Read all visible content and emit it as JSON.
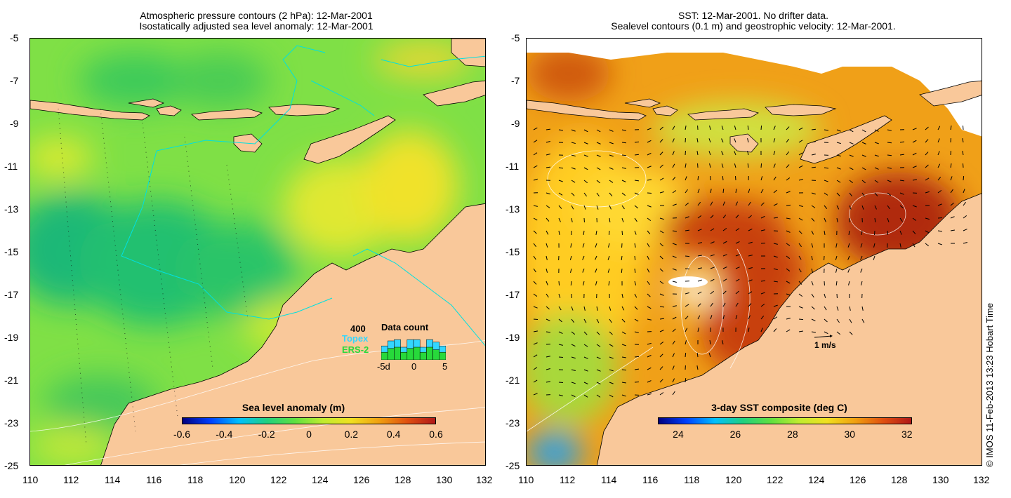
{
  "left_panel": {
    "title_line1": "Atmospheric pressure contours (2 hPa): 12-Mar-2001",
    "title_line2": "Isostatically adjusted sea level anomaly: 12-Mar-2001",
    "colorbar_title": "Sea level anomaly (m)",
    "colorbar_ticks": [
      "-0.6",
      "-0.4",
      "-0.2",
      "0",
      "0.2",
      "0.4",
      "0.6"
    ],
    "colors": {
      "ocean_base": "#7fe046",
      "ocean_low": "#22c070",
      "ocean_high": "#e8ec2a",
      "land": "#f9c89a"
    },
    "inset": {
      "title": "Data count",
      "max_label": "400",
      "series1_label": "Topex",
      "series2_label": "ERS-2",
      "series1_color": "#33d6ff",
      "series2_color": "#27d93b",
      "x_ticks": [
        "-5d",
        "0",
        "5"
      ],
      "series1_values": [
        0.55,
        0.75,
        0.8,
        0.5,
        0.8,
        0.8,
        0.5,
        0.8,
        0.7,
        0.55
      ],
      "series2_values": [
        0.3,
        0.45,
        0.5,
        0.3,
        0.45,
        0.5,
        0.3,
        0.5,
        0.4,
        0.3
      ]
    }
  },
  "right_panel": {
    "title_line1": "SST: 12-Mar-2001. No drifter data.",
    "title_line2": "Sealevel contours (0.1 m) and geostrophic velocity: 12-Mar-2001.",
    "colorbar_title": "3-day SST composite (deg C)",
    "colorbar_ticks": [
      "24",
      "26",
      "28",
      "30",
      "32"
    ],
    "scale_label": "1 m/s",
    "colors": {
      "ocean_base": "#f0a018",
      "ocean_warm": "#b83008",
      "ocean_cool": "#ffdd20",
      "land": "#f9c89a"
    }
  },
  "axes": {
    "y_ticks": [
      "-5",
      "-7",
      "-9",
      "-11",
      "-13",
      "-15",
      "-17",
      "-19",
      "-21",
      "-23",
      "-25"
    ],
    "x_ticks": [
      "110",
      "112",
      "114",
      "116",
      "118",
      "120",
      "122",
      "124",
      "126",
      "128",
      "130",
      "132"
    ]
  },
  "copyright": "© IMOS 11-Feb-2013 13:23 Hobart Time"
}
